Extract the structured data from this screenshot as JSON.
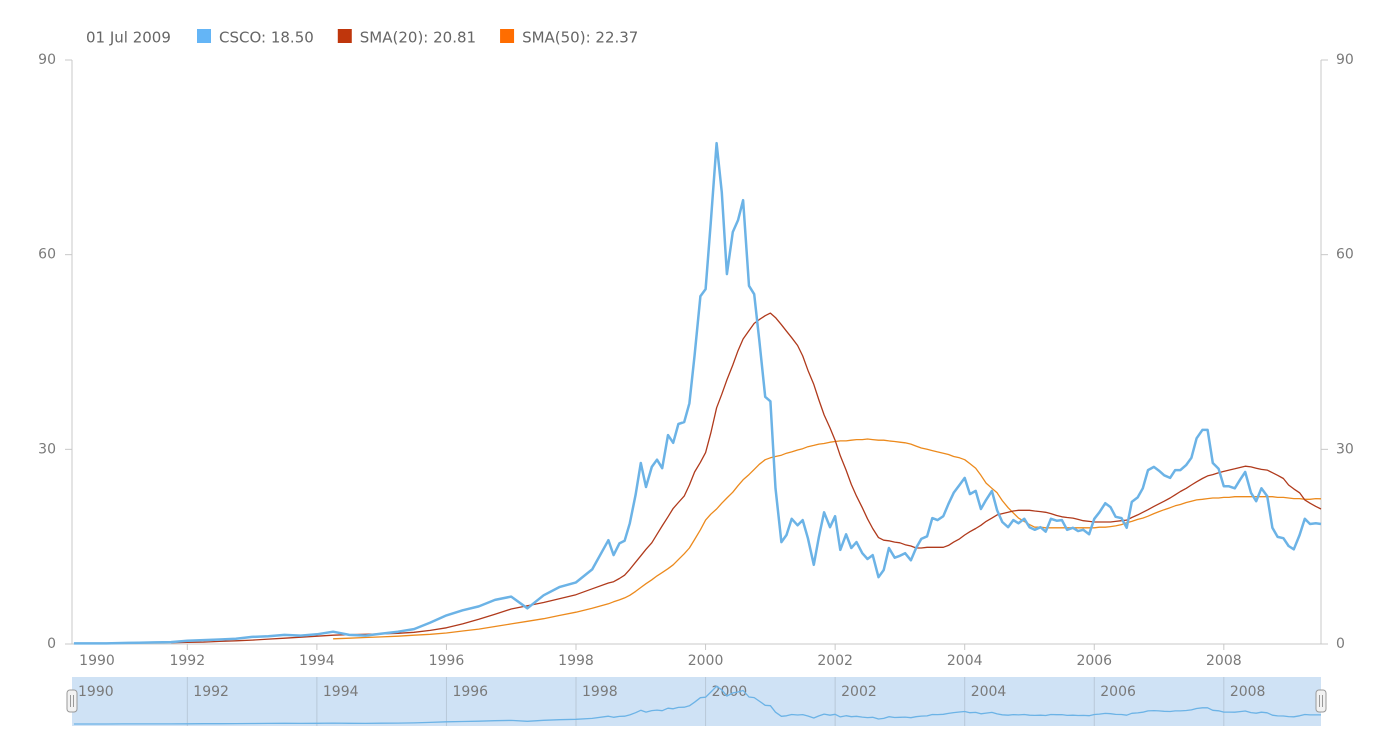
{
  "chart_data": {
    "type": "line",
    "legend_date": "01 Jul 2009",
    "x": [
      1990.25,
      1990.5,
      1990.75,
      1991,
      1991.25,
      1991.5,
      1991.75,
      1992,
      1992.25,
      1992.5,
      1992.75,
      1993,
      1993.25,
      1993.5,
      1993.75,
      1994,
      1994.25,
      1994.5,
      1994.75,
      1995,
      1995.25,
      1995.5,
      1995.75,
      1996,
      1996.25,
      1996.5,
      1996.75,
      1997,
      1997.25,
      1997.5,
      1997.75,
      1998,
      1998.25,
      1998.5,
      1998.58,
      1998.67,
      1998.75,
      1998.83,
      1998.92,
      1999,
      1999.08,
      1999.17,
      1999.25,
      1999.33,
      1999.42,
      1999.5,
      1999.58,
      1999.67,
      1999.75,
      1999.83,
      1999.92,
      2000,
      2000.08,
      2000.17,
      2000.25,
      2000.33,
      2000.42,
      2000.5,
      2000.58,
      2000.67,
      2000.75,
      2000.83,
      2000.92,
      2001,
      2001.08,
      2001.17,
      2001.25,
      2001.33,
      2001.42,
      2001.5,
      2001.58,
      2001.67,
      2001.75,
      2001.83,
      2001.92,
      2002,
      2002.08,
      2002.17,
      2002.25,
      2002.33,
      2002.42,
      2002.5,
      2002.58,
      2002.67,
      2002.75,
      2002.83,
      2002.92,
      2003,
      2003.08,
      2003.17,
      2003.25,
      2003.33,
      2003.42,
      2003.5,
      2003.58,
      2003.67,
      2003.75,
      2003.83,
      2003.92,
      2004,
      2004.08,
      2004.17,
      2004.25,
      2004.33,
      2004.42,
      2004.5,
      2004.58,
      2004.67,
      2004.75,
      2004.83,
      2004.92,
      2005,
      2005.08,
      2005.17,
      2005.25,
      2005.33,
      2005.42,
      2005.5,
      2005.58,
      2005.67,
      2005.75,
      2005.83,
      2005.92,
      2006,
      2006.08,
      2006.17,
      2006.25,
      2006.33,
      2006.42,
      2006.5,
      2006.58,
      2006.67,
      2006.75,
      2006.83,
      2006.92,
      2007,
      2007.08,
      2007.17,
      2007.25,
      2007.33,
      2007.42,
      2007.5,
      2007.58,
      2007.67,
      2007.75,
      2007.83,
      2007.92,
      2008,
      2008.08,
      2008.17,
      2008.25,
      2008.33,
      2008.42,
      2008.5,
      2008.58,
      2008.67,
      2008.75,
      2008.83,
      2008.92,
      2009,
      2009.08,
      2009.17,
      2009.25,
      2009.33,
      2009.42,
      2009.5
    ],
    "series": [
      {
        "name": "CSCO: 18.50",
        "color": "#6cb3e6",
        "legend_color": "#64b5f6",
        "values": [
          0.1,
          0.1,
          0.1,
          0.15,
          0.2,
          0.25,
          0.3,
          0.5,
          0.6,
          0.7,
          0.8,
          1.1,
          1.2,
          1.4,
          1.3,
          1.5,
          1.9,
          1.4,
          1.3,
          1.6,
          1.9,
          2.3,
          3.3,
          4.4,
          5.2,
          5.8,
          6.8,
          7.3,
          5.5,
          7.5,
          8.8,
          9.5,
          11.5,
          16,
          13.7,
          15.5,
          15.9,
          18.6,
          23,
          27.9,
          24.2,
          27.3,
          28.4,
          27.1,
          32.2,
          31,
          33.9,
          34.2,
          37.1,
          44.5,
          53.6,
          54.7,
          65,
          77.2,
          69.6,
          57,
          63.5,
          65.3,
          68.4,
          55.2,
          53.9,
          46.8,
          38.1,
          37.4,
          24,
          15.7,
          16.8,
          19.3,
          18.3,
          19.1,
          16.3,
          12.2,
          16.5,
          20.3,
          18,
          19.7,
          14.5,
          16.9,
          14.8,
          15.7,
          14,
          13.1,
          13.7,
          10.3,
          11.4,
          14.8,
          13.3,
          13.6,
          14,
          12.9,
          14.8,
          16.2,
          16.6,
          19.4,
          19.1,
          19.7,
          21.6,
          23.3,
          24.5,
          25.6,
          23.1,
          23.6,
          20.8,
          22.2,
          23.6,
          20.6,
          18.8,
          18,
          19.1,
          18.6,
          19.3,
          18,
          17.6,
          18,
          17.3,
          19.3,
          19,
          19.1,
          17.6,
          17.9,
          17.4,
          17.6,
          16.9,
          19.3,
          20.3,
          21.7,
          21.1,
          19.6,
          19.4,
          17.9,
          21.9,
          22.6,
          24,
          26.8,
          27.3,
          26.7,
          26,
          25.6,
          26.8,
          26.8,
          27.6,
          28.7,
          31.7,
          33,
          33,
          27.9,
          27,
          24.3,
          24.3,
          24,
          25.3,
          26.5,
          23.3,
          22,
          24,
          22.8,
          17.9,
          16.5,
          16.3,
          15.1,
          14.6,
          16.8,
          19.3,
          18.5,
          18.6,
          18.5
        ]
      },
      {
        "name": "SMA(20): 20.81",
        "color": "#b03a1c",
        "legend_color": "#bf360c",
        "values": [
          null,
          null,
          null,
          null,
          null,
          null,
          0.2,
          0.25,
          0.3,
          0.4,
          0.5,
          0.6,
          0.75,
          0.9,
          1.05,
          1.2,
          1.35,
          1.45,
          1.5,
          1.55,
          1.65,
          1.8,
          2.1,
          2.5,
          3.1,
          3.8,
          4.6,
          5.4,
          5.9,
          6.4,
          7.0,
          7.6,
          8.5,
          9.4,
          9.6,
          10.1,
          10.6,
          11.5,
          12.6,
          13.6,
          14.6,
          15.6,
          16.9,
          18.2,
          19.6,
          20.9,
          21.8,
          22.8,
          24.5,
          26.5,
          28,
          29.5,
          32.5,
          36.4,
          38.5,
          40.7,
          43,
          45.2,
          47,
          48.3,
          49.4,
          50,
          50.6,
          51,
          50.3,
          49.2,
          48.2,
          47.2,
          46,
          44.4,
          42.2,
          40,
          37.6,
          35.3,
          33.3,
          31.4,
          29,
          26.8,
          24.6,
          22.8,
          21,
          19.3,
          17.8,
          16.4,
          16,
          15.9,
          15.7,
          15.6,
          15.3,
          15.1,
          14.8,
          14.8,
          14.9,
          14.9,
          14.9,
          14.9,
          15.2,
          15.7,
          16.2,
          16.8,
          17.3,
          17.8,
          18.3,
          18.9,
          19.4,
          19.9,
          20.1,
          20.3,
          20.5,
          20.6,
          20.6,
          20.6,
          20.5,
          20.4,
          20.3,
          20.1,
          19.8,
          19.6,
          19.5,
          19.4,
          19.2,
          19,
          18.9,
          18.8,
          18.8,
          18.8,
          18.8,
          18.9,
          19,
          19.1,
          19.5,
          19.9,
          20.3,
          20.7,
          21.2,
          21.6,
          22,
          22.5,
          23,
          23.5,
          24,
          24.5,
          25,
          25.5,
          25.9,
          26.1,
          26.4,
          26.6,
          26.8,
          27,
          27.2,
          27.4,
          27.3,
          27.1,
          26.9,
          26.8,
          26.4,
          26,
          25.5,
          24.5,
          23.9,
          23.3,
          22.2,
          21.7,
          21.2,
          20.81
        ]
      },
      {
        "name": "SMA(50): 22.37",
        "color": "#ec8a1d",
        "legend_color": "#ff6d00",
        "values": [
          null,
          null,
          null,
          null,
          null,
          null,
          null,
          null,
          null,
          null,
          null,
          null,
          null,
          null,
          null,
          null,
          0.8,
          0.9,
          1.0,
          1.1,
          1.2,
          1.35,
          1.5,
          1.7,
          2.0,
          2.3,
          2.7,
          3.1,
          3.5,
          3.9,
          4.4,
          4.9,
          5.5,
          6.2,
          6.5,
          6.8,
          7.1,
          7.5,
          8.1,
          8.7,
          9.3,
          9.9,
          10.5,
          11,
          11.6,
          12.2,
          13,
          13.9,
          14.8,
          16.1,
          17.6,
          19.1,
          20,
          20.8,
          21.7,
          22.5,
          23.4,
          24.4,
          25.3,
          26.1,
          26.9,
          27.7,
          28.4,
          28.7,
          28.9,
          29.1,
          29.4,
          29.6,
          29.9,
          30.1,
          30.4,
          30.6,
          30.8,
          30.9,
          31.1,
          31.2,
          31.3,
          31.3,
          31.4,
          31.5,
          31.5,
          31.6,
          31.5,
          31.4,
          31.4,
          31.3,
          31.2,
          31.1,
          31,
          30.8,
          30.5,
          30.2,
          30,
          29.8,
          29.6,
          29.4,
          29.2,
          28.9,
          28.7,
          28.4,
          27.8,
          27.1,
          26,
          24.8,
          24,
          23.3,
          22.1,
          21,
          20.2,
          19.4,
          18.9,
          18.4,
          18,
          18,
          17.9,
          17.9,
          17.9,
          17.9,
          17.9,
          17.9,
          17.9,
          17.9,
          17.9,
          17.9,
          18,
          18,
          18.1,
          18.2,
          18.4,
          18.7,
          18.9,
          19.2,
          19.4,
          19.7,
          20.1,
          20.4,
          20.7,
          21,
          21.3,
          21.5,
          21.8,
          22,
          22.2,
          22.3,
          22.4,
          22.5,
          22.5,
          22.6,
          22.6,
          22.7,
          22.7,
          22.7,
          22.7,
          22.7,
          22.7,
          22.7,
          22.7,
          22.6,
          22.6,
          22.5,
          22.4,
          22.4,
          22.3,
          22.3,
          22.4,
          22.37
        ]
      }
    ],
    "xlim": [
      1990.22,
      2009.5
    ],
    "xticks": [
      1990,
      1992,
      1994,
      1996,
      1998,
      2000,
      2002,
      2004,
      2006,
      2008
    ],
    "ylim": [
      0,
      90
    ],
    "yticks": [
      0,
      30,
      60,
      90
    ],
    "y2lim": [
      0,
      90
    ],
    "y2ticks": [
      0,
      30,
      60,
      90
    ],
    "grid": false,
    "navigator": {
      "series": 0,
      "color": "#6cb3e6",
      "fill": "#cfe2f5"
    }
  }
}
